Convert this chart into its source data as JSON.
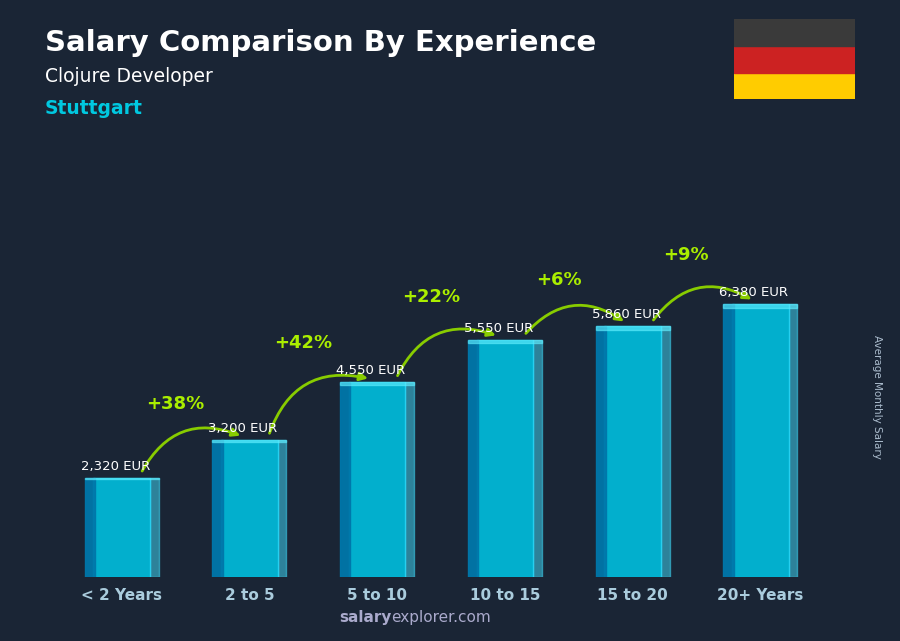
{
  "title": "Salary Comparison By Experience",
  "subtitle": "Clojure Developer",
  "city": "Stuttgart",
  "ylabel": "Average Monthly Salary",
  "categories": [
    "< 2 Years",
    "2 to 5",
    "5 to 10",
    "10 to 15",
    "15 to 20",
    "20+ Years"
  ],
  "values": [
    2320,
    3200,
    4550,
    5550,
    5860,
    6380
  ],
  "labels": [
    "2,320 EUR",
    "3,200 EUR",
    "4,550 EUR",
    "5,550 EUR",
    "5,860 EUR",
    "6,380 EUR"
  ],
  "pct_changes": [
    null,
    "+38%",
    "+42%",
    "+22%",
    "+6%",
    "+9%"
  ],
  "bar_color_main": "#00bfdf",
  "bar_color_dark": "#0077aa",
  "bar_color_light": "#40dfff",
  "bg_color": "#1a2535",
  "title_color": "#ffffff",
  "subtitle_color": "#ffffff",
  "city_color": "#00c8e0",
  "label_color": "#ffffff",
  "pct_color": "#aaee00",
  "arrow_color": "#88cc00",
  "xlabel_color": "#aaccdd",
  "watermark_bold": "salary",
  "watermark_normal": "explorer.com",
  "watermark_color": "#aaaacc",
  "flag_colors": [
    "#3a3a3a",
    "#cc2222",
    "#ffcc00"
  ],
  "ylim": [
    0,
    7800
  ]
}
